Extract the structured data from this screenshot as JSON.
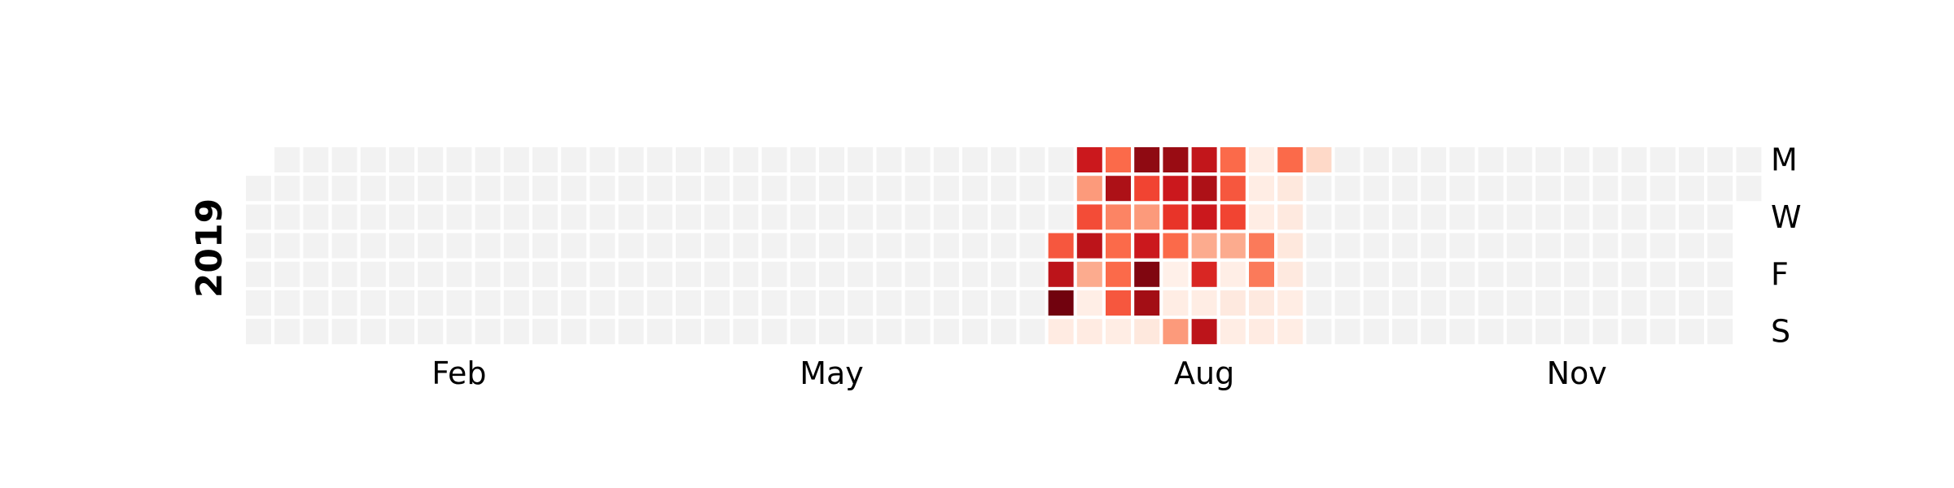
{
  "chart_data": {
    "type": "heatmap",
    "title": "",
    "year_label": "2019",
    "start_date": "2019-01-01",
    "end_date": "2019-12-31",
    "colorscale": "Reds",
    "empty_color": "#f2f2f2",
    "month_labels": [
      {
        "label": "Feb",
        "week": 7
      },
      {
        "label": "May",
        "week": 20
      },
      {
        "label": "Aug",
        "week": 33
      },
      {
        "label": "Nov",
        "week": 46
      }
    ],
    "day_labels": [
      {
        "label": "M",
        "weekday": 0
      },
      {
        "label": "W",
        "weekday": 2
      },
      {
        "label": "F",
        "weekday": 4
      },
      {
        "label": "S",
        "weekday": 6
      }
    ],
    "week_columns": 53,
    "nonzero_weeks": [
      {
        "week": 28,
        "values": [
          0,
          0,
          0,
          0.55,
          0.8,
          0.98,
          0.06
        ]
      },
      {
        "week": 29,
        "values": [
          0.75,
          0.35,
          0.58,
          0.8,
          0.3,
          0.04,
          0.06
        ]
      },
      {
        "week": 30,
        "values": [
          0.5,
          0.85,
          0.42,
          0.5,
          0.5,
          0.55,
          0.05
        ]
      },
      {
        "week": 31,
        "values": [
          0.92,
          0.6,
          0.35,
          0.75,
          0.95,
          0.88,
          0.08
        ]
      },
      {
        "week": 32,
        "values": [
          0.9,
          0.75,
          0.65,
          0.5,
          0.03,
          0.05,
          0.35
        ]
      },
      {
        "week": 33,
        "values": [
          0.78,
          0.85,
          0.75,
          0.3,
          0.7,
          0.05,
          0.8
        ]
      },
      {
        "week": 34,
        "values": [
          0.5,
          0.55,
          0.6,
          0.3,
          0.04,
          0.07,
          0.05
        ]
      },
      {
        "week": 35,
        "values": [
          0.05,
          0.05,
          0.05,
          0.45,
          0.45,
          0.07,
          0.06
        ]
      },
      {
        "week": 36,
        "values": [
          0.5,
          0.08,
          0.07,
          0.08,
          0.07,
          0.05,
          0.05
        ]
      },
      {
        "week": 37,
        "values": [
          0.15,
          0,
          0,
          0,
          0,
          0,
          0
        ]
      }
    ]
  }
}
